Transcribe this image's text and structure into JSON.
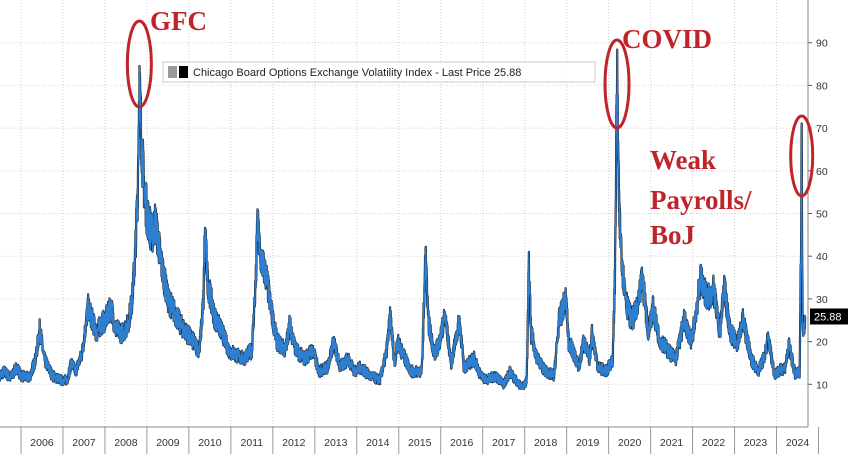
{
  "chart_data": {
    "type": "line",
    "legend": "Chicago Board Options Exchange Volatility Index - Last Price 25.88",
    "last_price_label": "25.88",
    "last_price": 25.88,
    "x_tick_labels": [
      "2006",
      "2007",
      "2008",
      "2009",
      "2010",
      "2011",
      "2012",
      "2013",
      "2014",
      "2015",
      "2016",
      "2017",
      "2018",
      "2019",
      "2020",
      "2021",
      "2022",
      "2023",
      "2024"
    ],
    "y_tick_labels": [
      "10",
      "20",
      "30",
      "40",
      "50",
      "60",
      "70",
      "80",
      "90"
    ],
    "xlim": [
      2005.5,
      2024.75
    ],
    "ylim": [
      0,
      100
    ],
    "grid": true,
    "legend_position": "top-left",
    "annotations": [
      {
        "text": "GFC",
        "lines": [
          "GFC"
        ]
      },
      {
        "text": "COVID",
        "lines": [
          "COVID"
        ]
      },
      {
        "text": "Weak Payrolls/ BoJ",
        "lines": [
          "Weak",
          "Payrolls/",
          "BoJ"
        ]
      }
    ],
    "series": [
      {
        "values": [
          [
            2005.5,
            12
          ],
          [
            2005.6,
            13
          ],
          [
            2005.75,
            11.5
          ],
          [
            2005.9,
            14
          ],
          [
            2006.0,
            12
          ],
          [
            2006.2,
            11.5
          ],
          [
            2006.35,
            16
          ],
          [
            2006.45,
            23
          ],
          [
            2006.55,
            16
          ],
          [
            2006.75,
            12
          ],
          [
            2006.95,
            11
          ],
          [
            2007.1,
            11
          ],
          [
            2007.2,
            15
          ],
          [
            2007.3,
            13
          ],
          [
            2007.45,
            17
          ],
          [
            2007.6,
            28
          ],
          [
            2007.7,
            25
          ],
          [
            2007.8,
            22
          ],
          [
            2007.9,
            24
          ],
          [
            2008.0,
            25
          ],
          [
            2008.15,
            28
          ],
          [
            2008.25,
            23
          ],
          [
            2008.4,
            22
          ],
          [
            2008.55,
            24
          ],
          [
            2008.65,
            30
          ],
          [
            2008.72,
            40
          ],
          [
            2008.78,
            55
          ],
          [
            2008.82,
            80.9
          ],
          [
            2008.86,
            70
          ],
          [
            2008.92,
            58
          ],
          [
            2009.0,
            50
          ],
          [
            2009.12,
            45
          ],
          [
            2009.2,
            48
          ],
          [
            2009.35,
            38
          ],
          [
            2009.5,
            30
          ],
          [
            2009.65,
            27
          ],
          [
            2009.8,
            24
          ],
          [
            2009.95,
            22
          ],
          [
            2010.1,
            20
          ],
          [
            2010.25,
            18
          ],
          [
            2010.35,
            30
          ],
          [
            2010.38,
            45.8
          ],
          [
            2010.45,
            34
          ],
          [
            2010.6,
            26
          ],
          [
            2010.8,
            22
          ],
          [
            2010.95,
            18
          ],
          [
            2011.1,
            17
          ],
          [
            2011.3,
            16
          ],
          [
            2011.5,
            18
          ],
          [
            2011.6,
            35
          ],
          [
            2011.63,
            48
          ],
          [
            2011.7,
            40
          ],
          [
            2011.85,
            35
          ],
          [
            2011.95,
            28
          ],
          [
            2012.1,
            20
          ],
          [
            2012.3,
            18
          ],
          [
            2012.4,
            24
          ],
          [
            2012.55,
            18
          ],
          [
            2012.75,
            16
          ],
          [
            2012.95,
            18
          ],
          [
            2013.1,
            13
          ],
          [
            2013.3,
            14
          ],
          [
            2013.45,
            20
          ],
          [
            2013.6,
            14
          ],
          [
            2013.8,
            16
          ],
          [
            2013.95,
            13
          ],
          [
            2014.1,
            14
          ],
          [
            2014.3,
            12
          ],
          [
            2014.55,
            11
          ],
          [
            2014.7,
            17
          ],
          [
            2014.8,
            26
          ],
          [
            2014.9,
            15
          ],
          [
            2014.98,
            20
          ],
          [
            2015.1,
            17
          ],
          [
            2015.3,
            13
          ],
          [
            2015.55,
            13
          ],
          [
            2015.64,
            40.7
          ],
          [
            2015.7,
            25
          ],
          [
            2015.85,
            17
          ],
          [
            2015.97,
            20
          ],
          [
            2016.1,
            26
          ],
          [
            2016.25,
            15
          ],
          [
            2016.45,
            25
          ],
          [
            2016.55,
            14
          ],
          [
            2016.8,
            16
          ],
          [
            2016.95,
            12
          ],
          [
            2017.1,
            11
          ],
          [
            2017.3,
            12
          ],
          [
            2017.5,
            10
          ],
          [
            2017.65,
            13
          ],
          [
            2017.85,
            10
          ],
          [
            2017.98,
            9.5
          ],
          [
            2018.05,
            11
          ],
          [
            2018.1,
            37.3
          ],
          [
            2018.15,
            22
          ],
          [
            2018.3,
            16
          ],
          [
            2018.5,
            13
          ],
          [
            2018.7,
            12
          ],
          [
            2018.82,
            25
          ],
          [
            2018.98,
            30
          ],
          [
            2019.05,
            20
          ],
          [
            2019.3,
            14
          ],
          [
            2019.4,
            20
          ],
          [
            2019.55,
            16
          ],
          [
            2019.6,
            22
          ],
          [
            2019.75,
            14
          ],
          [
            2019.95,
            13
          ],
          [
            2020.1,
            16
          ],
          [
            2020.15,
            35
          ],
          [
            2020.2,
            82.7
          ],
          [
            2020.25,
            50
          ],
          [
            2020.35,
            35
          ],
          [
            2020.45,
            28
          ],
          [
            2020.55,
            25
          ],
          [
            2020.7,
            28
          ],
          [
            2020.8,
            35
          ],
          [
            2020.95,
            22
          ],
          [
            2021.05,
            28
          ],
          [
            2021.2,
            21
          ],
          [
            2021.4,
            18
          ],
          [
            2021.6,
            16
          ],
          [
            2021.8,
            25
          ],
          [
            2021.98,
            20
          ],
          [
            2022.05,
            25
          ],
          [
            2022.2,
            35
          ],
          [
            2022.35,
            30
          ],
          [
            2022.5,
            32
          ],
          [
            2022.65,
            22
          ],
          [
            2022.75,
            33
          ],
          [
            2022.9,
            22
          ],
          [
            2022.98,
            21
          ],
          [
            2023.05,
            19
          ],
          [
            2023.2,
            25
          ],
          [
            2023.4,
            16
          ],
          [
            2023.55,
            13
          ],
          [
            2023.7,
            16
          ],
          [
            2023.8,
            21
          ],
          [
            2023.95,
            12.5
          ],
          [
            2024.05,
            13
          ],
          [
            2024.2,
            14
          ],
          [
            2024.3,
            19
          ],
          [
            2024.45,
            12
          ],
          [
            2024.55,
            13
          ],
          [
            2024.58,
            38.6
          ],
          [
            2024.6,
            65.7
          ],
          [
            2024.62,
            25
          ],
          [
            2024.65,
            23
          ],
          [
            2024.68,
            25.88
          ]
        ]
      }
    ]
  }
}
